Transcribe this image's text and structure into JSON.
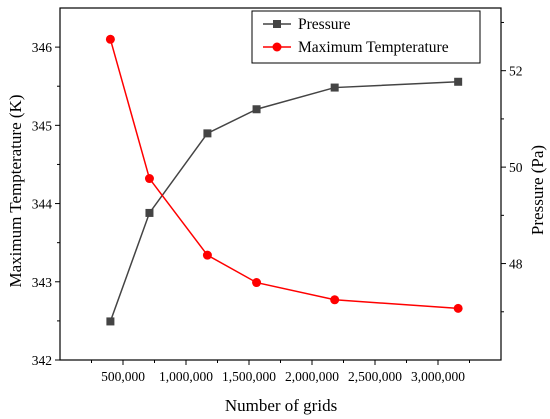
{
  "chart_data": {
    "type": "line",
    "xlabel": "Number of grids",
    "ylabel_left": "Maximum Tempterature (K)",
    "ylabel_right": "Pressure (Pa)",
    "xlim": [
      0,
      3500000
    ],
    "ylim_left": [
      342,
      346.5
    ],
    "ylim_right": [
      46,
      53.3
    ],
    "x_ticks": [
      500000,
      1000000,
      1500000,
      2000000,
      2500000,
      3000000
    ],
    "x_tick_labels": [
      "500,000",
      "1,000,000",
      "1,500,000",
      "2,000,000",
      "2,500,000",
      "3,000,000"
    ],
    "y_left_ticks": [
      342,
      343,
      344,
      345,
      346
    ],
    "y_left_tick_labels": [
      "342",
      "343",
      "344",
      "345",
      "346"
    ],
    "y_right_ticks": [
      48,
      50,
      52
    ],
    "y_right_tick_labels": [
      "48",
      "50",
      "52"
    ],
    "legend_position": "top-right",
    "grid": false,
    "series": [
      {
        "name": "Pressure",
        "axis": "right",
        "marker": "square",
        "color": "#444444",
        "x": [
          400000,
          710000,
          1170000,
          1560000,
          2180000,
          3160000
        ],
        "y": [
          46.8,
          49.05,
          50.7,
          51.2,
          51.65,
          51.77
        ]
      },
      {
        "name": "Maximum Tempterature",
        "axis": "left",
        "marker": "circle",
        "color": "#ff0000",
        "x": [
          400000,
          710000,
          1170000,
          1560000,
          2180000,
          3160000
        ],
        "y": [
          346.1,
          344.32,
          343.34,
          342.99,
          342.77,
          342.66
        ]
      }
    ]
  }
}
